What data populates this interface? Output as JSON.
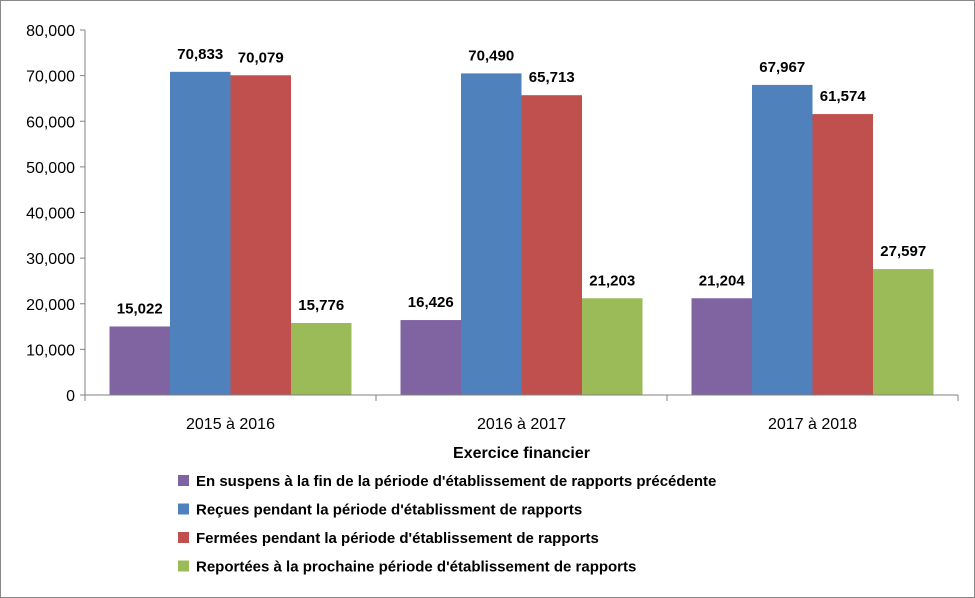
{
  "chart_data": {
    "type": "bar",
    "title": "",
    "xlabel": "Exercice financier",
    "ylabel": "",
    "ylim": [
      0,
      80000
    ],
    "yticks": [
      0,
      10000,
      20000,
      30000,
      40000,
      50000,
      60000,
      70000,
      80000
    ],
    "ytick_labels": [
      "0",
      "10,000",
      "20,000",
      "30,000",
      "40,000",
      "50,000",
      "60,000",
      "70,000",
      "80,000"
    ],
    "categories": [
      "2015 à 2016",
      "2016 à 2017",
      "2017 à 2018"
    ],
    "grid": false,
    "legend_position": "bottom",
    "series": [
      {
        "name": "En suspens à la fin de la période d'établissement de rapports précédente",
        "color": "#8064A2",
        "values": [
          15022,
          16426,
          21204
        ],
        "labels": [
          "15,022",
          "16,426",
          "21,204"
        ]
      },
      {
        "name": "Reçues pendant la période d'établissment de rapports",
        "color": "#4F81BD",
        "values": [
          70833,
          70490,
          67967
        ],
        "labels": [
          "70,833",
          "70,490",
          "67,967"
        ]
      },
      {
        "name": "Fermées pendant la période d'établissement de rapports",
        "color": "#C0504D",
        "values": [
          70079,
          65713,
          61574
        ],
        "labels": [
          "70,079",
          "65,713",
          "61,574"
        ]
      },
      {
        "name": "Reportées à la prochaine période d'établissement de rapports",
        "color": "#9BBB59",
        "values": [
          15776,
          21203,
          27597
        ],
        "labels": [
          "15,776",
          "21,203",
          "27,597"
        ]
      }
    ]
  }
}
